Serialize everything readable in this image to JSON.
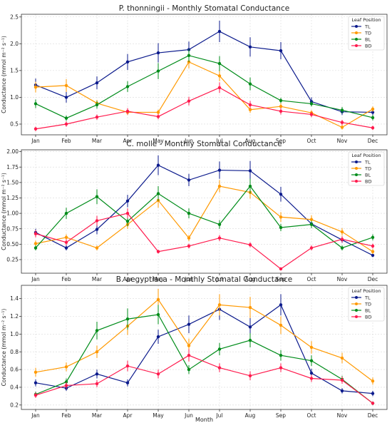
{
  "chart_data": [
    {
      "type": "line",
      "title": "P. thonningii - Monthly Stomatal Conductance",
      "xlabel": "",
      "ylabel": "Conductance (mmol m⁻² s⁻¹)",
      "x": [
        "Jan",
        "Feb",
        "Mar",
        "Apr",
        "May",
        "Jun",
        "Jul",
        "Aug",
        "Sep",
        "Oct",
        "Nov",
        "Dec"
      ],
      "ylim": [
        0.3,
        2.55
      ],
      "yticks": [
        "0.5",
        "1.0",
        "1.5",
        "2.0",
        "2.5"
      ],
      "grid": true,
      "legend": {
        "title": "Leaf Position",
        "placement": "top-right"
      },
      "series": [
        {
          "name": "TL",
          "color": "#0b1a8c",
          "values": [
            1.23,
            1.0,
            1.27,
            1.66,
            1.83,
            1.89,
            2.23,
            1.94,
            1.87,
            0.92,
            0.73,
            0.72
          ],
          "errors": [
            0.12,
            0.1,
            0.12,
            0.15,
            0.18,
            0.15,
            0.2,
            0.18,
            0.16,
            0.08,
            0.06,
            0.06
          ]
        },
        {
          "name": "TD",
          "color": "#ff9900",
          "values": [
            1.19,
            1.22,
            0.89,
            0.72,
            0.72,
            1.66,
            1.4,
            0.77,
            0.83,
            0.71,
            0.44,
            0.78
          ],
          "errors": [
            0.1,
            0.12,
            0.06,
            0.05,
            0.05,
            0.12,
            0.1,
            0.06,
            0.06,
            0.05,
            0.04,
            0.05
          ]
        },
        {
          "name": "BL",
          "color": "#008c1a",
          "values": [
            0.88,
            0.61,
            0.86,
            1.2,
            1.49,
            1.78,
            1.63,
            1.25,
            0.94,
            0.88,
            0.76,
            0.62
          ],
          "errors": [
            0.08,
            0.05,
            0.07,
            0.1,
            0.15,
            0.12,
            0.14,
            0.12,
            0.05,
            0.05,
            0.06,
            0.05
          ]
        },
        {
          "name": "BD",
          "color": "#ff1a4d",
          "values": [
            0.41,
            0.5,
            0.63,
            0.74,
            0.64,
            0.93,
            1.18,
            0.86,
            0.74,
            0.68,
            0.53,
            0.43
          ],
          "errors": [
            0.04,
            0.05,
            0.05,
            0.06,
            0.05,
            0.08,
            0.1,
            0.07,
            0.06,
            0.05,
            0.05,
            0.04
          ]
        }
      ]
    },
    {
      "type": "line",
      "title": "C. molle - Monthly Stomatal Conductance",
      "xlabel": "",
      "ylabel": "Conductance (mmol m⁻² s⁻¹)",
      "x": [
        "Jan",
        "Feb",
        "Mar",
        "Apr",
        "May",
        "Jun",
        "Jul",
        "Aug",
        "Sep",
        "Oct",
        "Nov",
        "Dec"
      ],
      "ylim": [
        0.03,
        2.03
      ],
      "yticks": [
        "0.25",
        "0.50",
        "0.75",
        "1.00",
        "1.25",
        "1.50",
        "1.75",
        "2.00"
      ],
      "grid": true,
      "legend": {
        "title": "Leaf Position",
        "placement": "top-right"
      },
      "series": [
        {
          "name": "TL",
          "color": "#0b1a8c",
          "values": [
            0.69,
            0.44,
            0.74,
            1.2,
            1.78,
            1.54,
            1.7,
            1.69,
            1.31,
            0.83,
            0.57,
            0.32
          ],
          "errors": [
            0.06,
            0.04,
            0.08,
            0.1,
            0.16,
            0.1,
            0.14,
            0.16,
            0.12,
            0.06,
            0.05,
            0.03
          ]
        },
        {
          "name": "TD",
          "color": "#ff9900",
          "values": [
            0.51,
            0.61,
            0.44,
            0.82,
            1.21,
            0.6,
            1.44,
            1.34,
            0.94,
            0.9,
            0.7,
            0.38
          ],
          "errors": [
            0.05,
            0.05,
            0.04,
            0.07,
            0.12,
            0.05,
            0.1,
            0.1,
            0.08,
            0.07,
            0.06,
            0.04
          ]
        },
        {
          "name": "BL",
          "color": "#008c1a",
          "values": [
            0.44,
            1.0,
            1.27,
            0.87,
            1.32,
            1.0,
            0.82,
            1.44,
            0.77,
            0.82,
            0.44,
            0.61
          ],
          "errors": [
            0.04,
            0.09,
            0.12,
            0.08,
            0.12,
            0.08,
            0.07,
            0.12,
            0.06,
            0.06,
            0.04,
            0.05
          ]
        },
        {
          "name": "BD",
          "color": "#ff1a4d",
          "values": [
            0.67,
            0.53,
            0.88,
            1.0,
            0.38,
            0.47,
            0.6,
            0.49,
            0.1,
            0.44,
            0.58,
            0.47
          ],
          "errors": [
            0.06,
            0.05,
            0.08,
            0.08,
            0.03,
            0.04,
            0.05,
            0.04,
            0.02,
            0.04,
            0.05,
            0.04
          ]
        }
      ]
    },
    {
      "type": "line",
      "title": "B. aegyptiaca - Monthly Stomatal Conductance",
      "xlabel": "Month",
      "ylabel": "Conductance (mmol m⁻² s⁻¹)",
      "x": [
        "Jan",
        "Feb",
        "Mar",
        "Apr",
        "May",
        "Jun",
        "Jul",
        "Aug",
        "Sep",
        "Oct",
        "Nov",
        "Dec"
      ],
      "ylim": [
        0.15,
        1.55
      ],
      "yticks": [
        "0.2",
        "0.4",
        "0.6",
        "0.8",
        "1.0",
        "1.2",
        "1.4"
      ],
      "grid": true,
      "legend": {
        "title": "Leaf Position",
        "placement": "top-right"
      },
      "series": [
        {
          "name": "TL",
          "color": "#0b1a8c",
          "values": [
            0.45,
            0.39,
            0.55,
            0.45,
            0.97,
            1.11,
            1.28,
            1.08,
            1.33,
            0.56,
            0.36,
            0.33
          ],
          "errors": [
            0.04,
            0.03,
            0.05,
            0.04,
            0.08,
            0.1,
            0.12,
            0.1,
            0.12,
            0.05,
            0.03,
            0.03
          ]
        },
        {
          "name": "TD",
          "color": "#ff9900",
          "values": [
            0.57,
            0.63,
            0.8,
            1.09,
            1.39,
            0.87,
            1.33,
            1.3,
            1.1,
            0.85,
            0.73,
            0.47
          ],
          "errors": [
            0.05,
            0.05,
            0.07,
            0.1,
            0.12,
            0.08,
            0.12,
            0.12,
            0.1,
            0.07,
            0.06,
            0.04
          ]
        },
        {
          "name": "BL",
          "color": "#008c1a",
          "values": [
            0.32,
            0.46,
            1.04,
            1.17,
            1.22,
            0.6,
            0.83,
            0.93,
            0.76,
            0.7,
            0.49,
            0.22
          ],
          "errors": [
            0.03,
            0.04,
            0.1,
            0.12,
            0.11,
            0.05,
            0.07,
            0.08,
            0.06,
            0.06,
            0.04,
            0.02
          ]
        },
        {
          "name": "BD",
          "color": "#ff1a4d",
          "values": [
            0.31,
            0.42,
            0.44,
            0.64,
            0.55,
            0.76,
            0.62,
            0.53,
            0.62,
            0.5,
            0.48,
            0.22
          ],
          "errors": [
            0.03,
            0.04,
            0.04,
            0.06,
            0.05,
            0.07,
            0.05,
            0.05,
            0.05,
            0.04,
            0.04,
            0.02
          ]
        }
      ]
    }
  ]
}
